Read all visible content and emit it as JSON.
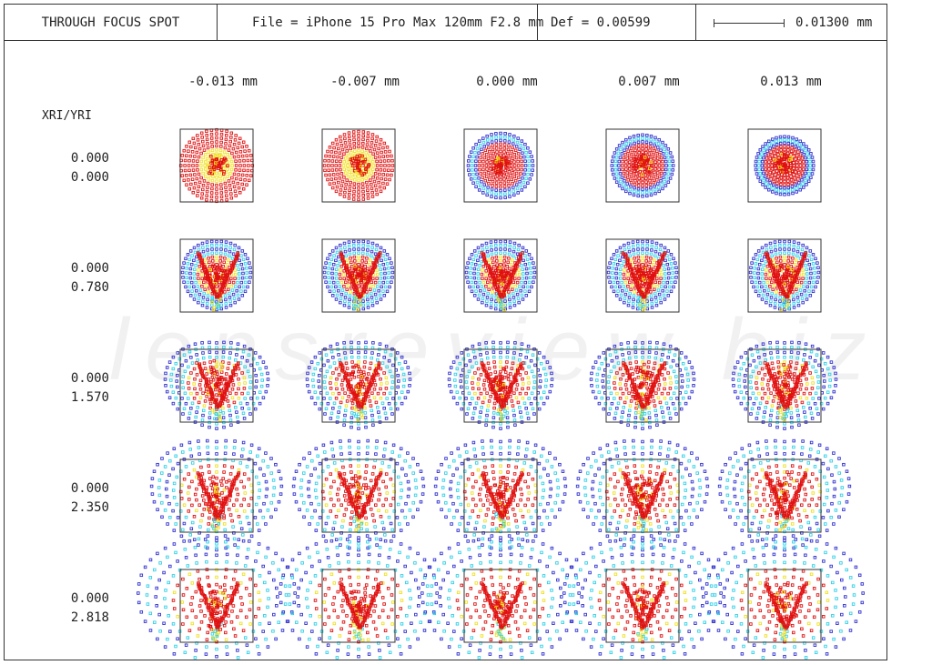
{
  "header": {
    "title": "THROUGH FOCUS SPOT",
    "file": "File = iPhone 15 Pro Max 120mm F2.8 mm",
    "defocus": "Def = 0.00599",
    "scale_value": "0.01300 mm"
  },
  "column_labels": [
    "-0.013  mm",
    "-0.007  mm",
    "0.000  mm",
    "0.007  mm",
    "0.013  mm"
  ],
  "row_header": "XRI/YRI",
  "rows": [
    {
      "x": "0.000",
      "y": "0.000"
    },
    {
      "x": "0.000",
      "y": "0.780"
    },
    {
      "x": "0.000",
      "y": "1.570"
    },
    {
      "x": "0.000",
      "y": "2.350"
    },
    {
      "x": "0.000",
      "y": "2.818"
    }
  ],
  "watermark": "lensreview.biz",
  "colors": {
    "red": "#e01010",
    "blue": "#3030d0",
    "cyan": "#30d0e8",
    "yellow": "#f0e020",
    "green": "#30c030",
    "frame": "#333333"
  }
}
